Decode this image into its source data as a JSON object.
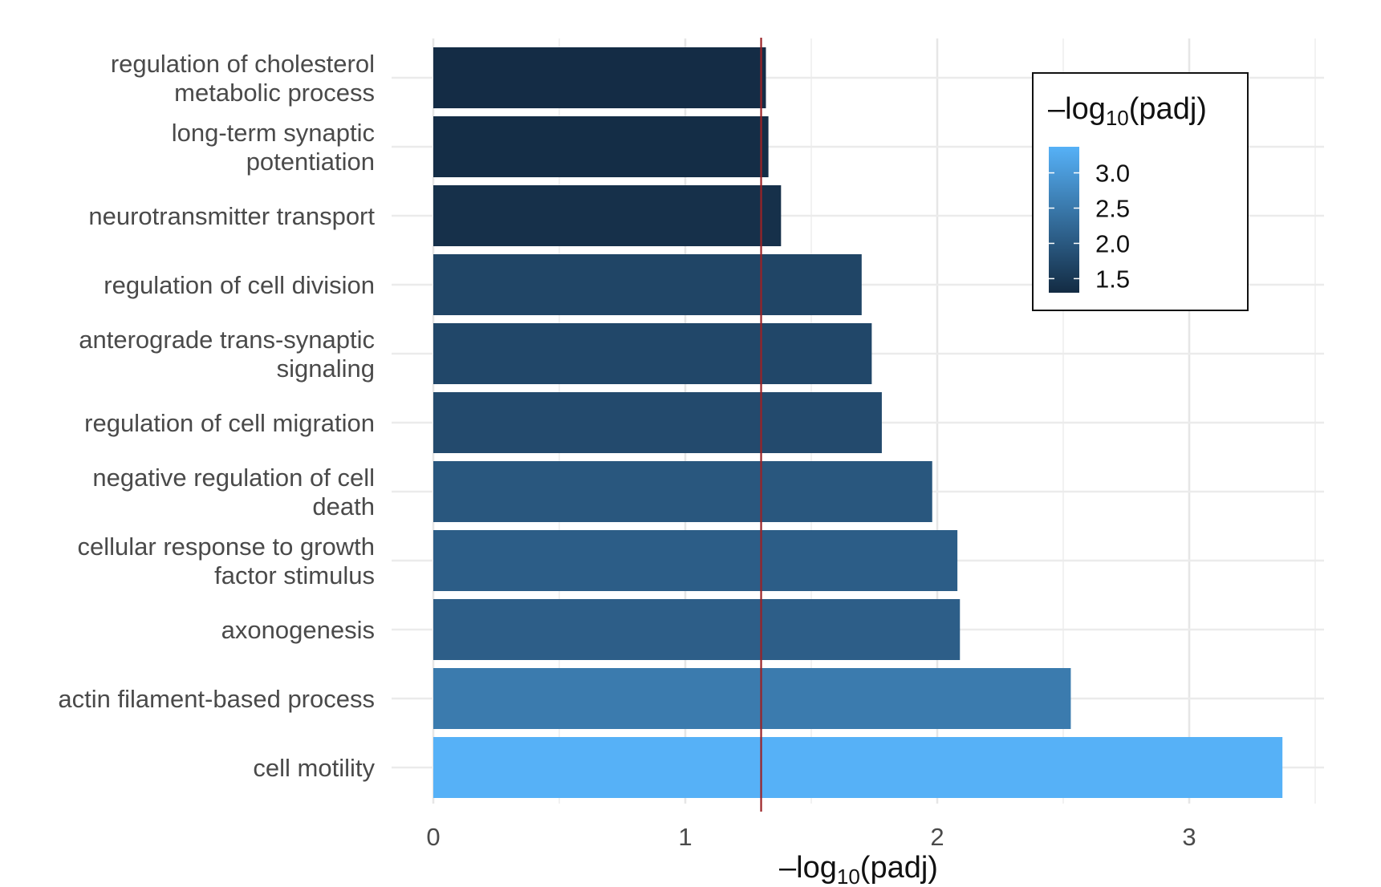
{
  "chart_data": {
    "type": "bar",
    "orientation": "horizontal",
    "categories": [
      [
        "regulation of cholesterol",
        "metabolic process"
      ],
      [
        "long-term synaptic",
        "potentiation"
      ],
      [
        "neurotransmitter transport"
      ],
      [
        "regulation of cell division"
      ],
      [
        "anterograde trans-synaptic",
        "signaling"
      ],
      [
        "regulation of cell migration"
      ],
      [
        "negative regulation of cell",
        "death"
      ],
      [
        "cellular response to growth",
        "factor stimulus"
      ],
      [
        "axonogenesis"
      ],
      [
        "actin filament-based process"
      ],
      [
        "cell motility"
      ]
    ],
    "values": [
      1.32,
      1.33,
      1.38,
      1.7,
      1.74,
      1.78,
      1.98,
      2.08,
      2.09,
      2.53,
      3.37
    ],
    "xlim": [
      0,
      3.5
    ],
    "xticks": [
      0,
      1,
      2,
      3
    ],
    "xticks_labels": [
      "0",
      "1",
      "2",
      "3"
    ],
    "threshold_line": 1.301,
    "threshold_color": "#9b2226",
    "xlabel": {
      "prefix": "–log",
      "sub": "10",
      "suffix": "(padj)"
    },
    "ylabel": "",
    "grid": true,
    "legend": {
      "title": {
        "prefix": "–log",
        "sub": "10",
        "suffix": "(padj)"
      },
      "position": "top-right",
      "range": [
        1.3,
        3.37
      ],
      "ticks": [
        3.0,
        2.5,
        2.0,
        1.5
      ],
      "tick_labels": [
        "3.0",
        "2.5",
        "2.0",
        "1.5"
      ],
      "color_low": "#132B43",
      "color_high": "#56B1F7"
    }
  }
}
